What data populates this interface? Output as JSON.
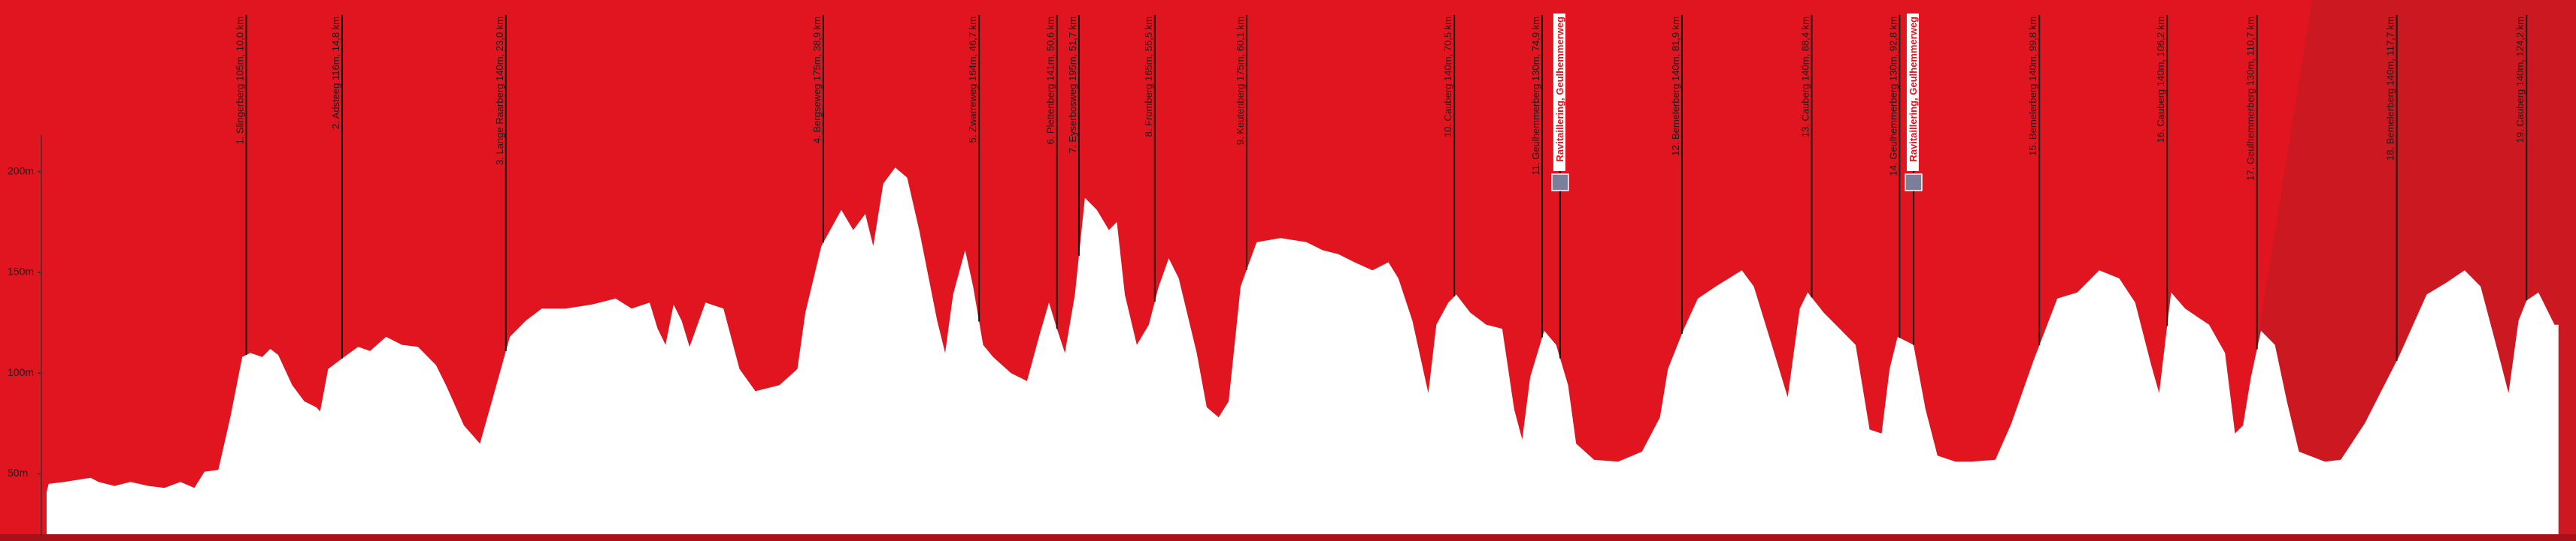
{
  "chart_data": {
    "type": "area",
    "color": "#ffffff",
    "xlim": [
      0,
      126
    ],
    "ylim": [
      20,
      220
    ],
    "yticks": [
      {
        "value": 50,
        "label": "50m"
      },
      {
        "value": 100,
        "label": "100m"
      },
      {
        "value": 150,
        "label": "150m"
      },
      {
        "value": 200,
        "label": "200m"
      }
    ],
    "x": [
      0,
      0.1,
      0.9,
      2.2,
      2.6,
      3.4,
      4.2,
      5.1,
      5.9,
      6.7,
      7.4,
      7.9,
      8.6,
      9.2,
      9.8,
      10.2,
      10.8,
      11.2,
      11.6,
      12.3,
      12.9,
      13.5,
      13.7,
      14.1,
      14.9,
      15.6,
      16.2,
      17.0,
      17.8,
      18.6,
      19.5,
      20.0,
      20.9,
      21.7,
      22.3,
      23.2,
      24.0,
      24.8,
      26.0,
      27.3,
      28.5,
      29.3,
      30.2,
      30.6,
      31.0,
      31.4,
      31.8,
      32.2,
      33.0,
      33.9,
      34.7,
      35.5,
      36.7,
      37.6,
      38.0,
      38.8,
      39.8,
      40.4,
      41.0,
      41.4,
      41.9,
      42.5,
      43.1,
      43.7,
      44.6,
      45.0,
      45.4,
      46.0,
      46.4,
      46.9,
      47.4,
      48.3,
      49.1,
      49.7,
      50.2,
      50.6,
      51.0,
      51.5,
      52.0,
      52.6,
      53.2,
      53.6,
      54.0,
      54.6,
      55.2,
      55.7,
      56.2,
      56.7,
      57.6,
      58.1,
      58.7,
      59.2,
      59.8,
      60.6,
      61.8,
      63.1,
      63.9,
      64.7,
      65.5,
      66.4,
      67.2,
      67.7,
      68.4,
      69.2,
      69.6,
      70.2,
      70.6,
      71.3,
      72.1,
      72.9,
      73.5,
      73.9,
      74.3,
      75.0,
      75.6,
      76.2,
      76.6,
      77.5,
      78.7,
      79.9,
      80.8,
      81.2,
      82.0,
      82.7,
      83.6,
      84.9,
      85.5,
      86.4,
      87.2,
      87.8,
      88.2,
      89.0,
      89.8,
      90.6,
      91.3,
      91.9,
      92.3,
      92.7,
      93.5,
      94.1,
      94.7,
      95.6,
      96.4,
      97.6,
      98.4,
      99.5,
      100.7,
      101.7,
      102.8,
      103.8,
      104.6,
      105.4,
      105.8,
      106.4,
      107.1,
      108.3,
      109.1,
      109.6,
      110.0,
      110.4,
      110.9,
      111.6,
      112.2,
      112.8,
      114.1,
      114.9,
      116.1,
      117.8,
      119.2,
      120.2,
      121.1,
      121.9,
      122.7,
      123.3,
      123.8,
      124.2,
      124.8,
      125.6,
      125.8
    ],
    "values": [
      41,
      45,
      46,
      48,
      46,
      44,
      46,
      44,
      43,
      46,
      43,
      51,
      52,
      78,
      108,
      110,
      108,
      112,
      109,
      94,
      86,
      83,
      81,
      102,
      108,
      113,
      111,
      118,
      114,
      113,
      104,
      94,
      74,
      65,
      86,
      118,
      126,
      132,
      132,
      134,
      137,
      132,
      135,
      122,
      114,
      134,
      126,
      113,
      135,
      132,
      102,
      91,
      94,
      102,
      130,
      163,
      181,
      171,
      179,
      163,
      194,
      202,
      197,
      171,
      126,
      110,
      139,
      161,
      143,
      114,
      108,
      100,
      96,
      118,
      135,
      122,
      110,
      139,
      187,
      181,
      171,
      175,
      139,
      114,
      124,
      143,
      157,
      147,
      110,
      83,
      78,
      86,
      143,
      165,
      167,
      165,
      161,
      159,
      155,
      151,
      155,
      147,
      126,
      90,
      124,
      135,
      139,
      130,
      124,
      122,
      82,
      67,
      98,
      121,
      114,
      94,
      65,
      57,
      56,
      61,
      78,
      102,
      122,
      137,
      143,
      151,
      143,
      114,
      88,
      132,
      140,
      130,
      122,
      114,
      72,
      70,
      102,
      118,
      114,
      82,
      59,
      56,
      56,
      57,
      75,
      106,
      137,
      140,
      151,
      147,
      135,
      104,
      90,
      140,
      132,
      124,
      110,
      70,
      74,
      98,
      121,
      114,
      86,
      61,
      56,
      57,
      75,
      108,
      139,
      145,
      151,
      143,
      113,
      90,
      126,
      136,
      140,
      124,
      124
    ],
    "markers": [
      {
        "label": "1. Slingerberg 105m, 10,0 km",
        "km": 10.0
      },
      {
        "label": "2. Adsteeg 116m, 14,8 km",
        "km": 14.8
      },
      {
        "label": "3. Lange Raarberg 140m, 23,0 km",
        "km": 23.0
      },
      {
        "label": "4. Bergseweg 175m, 38,9 km",
        "km": 38.9
      },
      {
        "label": "5. Zwarreweg 164m, 46,7 km",
        "km": 46.7
      },
      {
        "label": "6. Plettenberg 141m, 50,6 km",
        "km": 50.6
      },
      {
        "label": "7. Eyserbosweg 195m, 51,7 km",
        "km": 51.7
      },
      {
        "label": "8. Fromberg 165m, 55,5 km",
        "km": 55.5
      },
      {
        "label": "9. Keutenberg 175m, 60,1 km",
        "km": 60.1
      },
      {
        "label": "10. Cauberg 140m, 70,5 km",
        "km": 70.5
      },
      {
        "label": "11. Geulhemmerberg 130m, 74,9 km",
        "km": 74.9
      },
      {
        "label": "12. Bemelerberg 140m, 81,9 km",
        "km": 81.9
      },
      {
        "label": "13. Cauberg 140m, 88,4 km",
        "km": 88.4
      },
      {
        "label": "14. Geulhemmerberg 130m, 92,8 km",
        "km": 92.8
      },
      {
        "label": "15. Bemelerberg 140m, 99,8 km",
        "km": 99.8
      },
      {
        "label": "16. Cauberg 140m, 106,2 km",
        "km": 106.2
      },
      {
        "label": "17. Geulhemmerberg 130m, 110,7 km",
        "km": 110.7
      },
      {
        "label": "18. Bemelerberg 140m, 117,7 km",
        "km": 117.7
      },
      {
        "label": "19. Cauberg 140m, 124,2 km",
        "km": 124.2
      }
    ],
    "feed_zones": [
      {
        "label": "Ravitaillering, Geulhemmerweg",
        "km": 75.8
      },
      {
        "label": "Ravitaillering, Geulhemmerweg",
        "km": 93.5
      }
    ]
  }
}
